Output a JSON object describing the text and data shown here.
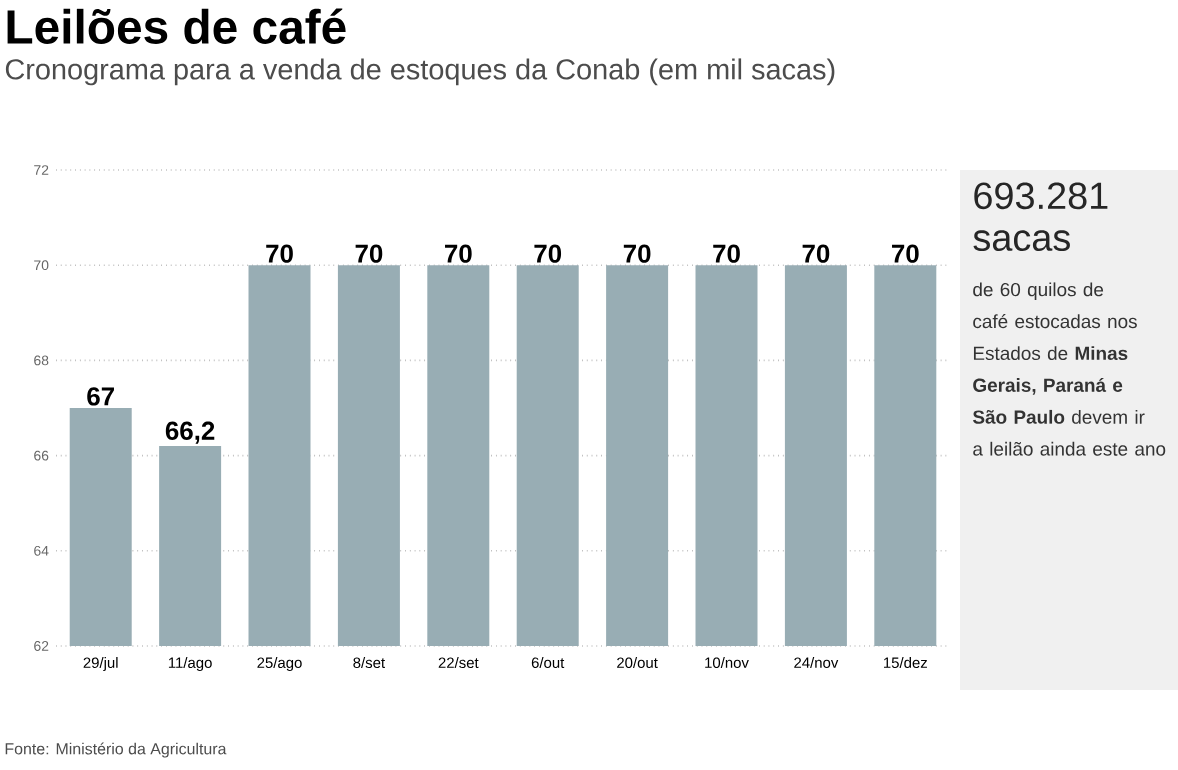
{
  "chart_data": {
    "type": "bar",
    "title": "Leilões de café",
    "subtitle": "Cronograma para a venda de estoques da Conab (em mil sacas)",
    "categories": [
      "29/jul",
      "11/ago",
      "25/ago",
      "8/set",
      "22/set",
      "6/out",
      "20/out",
      "10/nov",
      "24/nov",
      "15/dez"
    ],
    "values": [
      67,
      66.2,
      70,
      70,
      70,
      70,
      70,
      70,
      70,
      70
    ],
    "color": "#98adb4",
    "ylim": [
      62,
      72
    ],
    "yticks": [
      62,
      64,
      66,
      68,
      70,
      72
    ],
    "value_labels": [
      "67",
      "66,2",
      "70",
      "70",
      "70",
      "70",
      "70",
      "70",
      "70",
      "70"
    ],
    "grid": "y",
    "annotations": [
      "Fonte: Ministério da Agricultura",
      "693.281 sacas",
      "de 60 quilos de café estocadas nos Estados de **Minas Gerais, Paraná e São Paulo** devem ir a leilão ainda este ano"
    ]
  }
}
